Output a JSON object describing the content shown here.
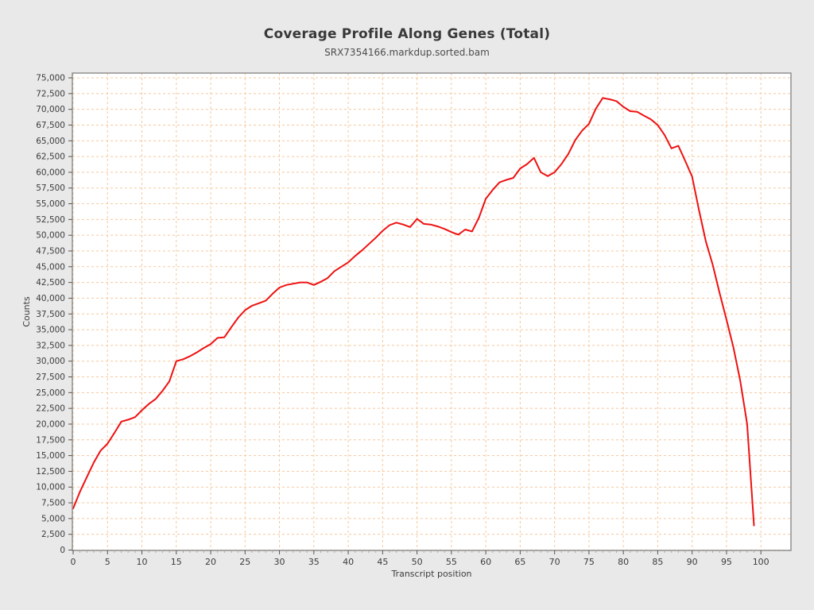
{
  "page": {
    "background": "#e9e9e9"
  },
  "chart_data": {
    "type": "line",
    "title": "Coverage Profile Along Genes (Total)",
    "subtitle": "SRX7354166.markdup.sorted.bam",
    "xlabel": "Transcript position",
    "ylabel": "Counts",
    "xlim": [
      0,
      104.5
    ],
    "ylim": [
      0,
      75000
    ],
    "grid": true,
    "legend_position": "none",
    "x_ticks": [
      0,
      5,
      10,
      15,
      20,
      25,
      30,
      35,
      40,
      45,
      50,
      55,
      60,
      65,
      70,
      75,
      80,
      85,
      90,
      95,
      100
    ],
    "x_minor_tick_step": 1,
    "y_ticks": [
      0,
      2500,
      5000,
      7500,
      10000,
      12500,
      15000,
      17500,
      20000,
      22500,
      25000,
      27500,
      30000,
      32500,
      35000,
      37500,
      40000,
      42500,
      45000,
      47500,
      50000,
      52500,
      55000,
      57500,
      60000,
      62500,
      65000,
      67500,
      70000,
      72500,
      75000
    ],
    "series": [
      {
        "name": "SRX7354166.markdup.sorted.bam",
        "color": "#ee1111",
        "x_start": 0,
        "values": [
          6600,
          9300,
          11600,
          13900,
          15800,
          16900,
          18600,
          20400,
          20700,
          21100,
          22200,
          23200,
          24000,
          25300,
          26800,
          30000,
          30300,
          30800,
          31400,
          32100,
          32700,
          33700,
          33800,
          35400,
          36900,
          38100,
          38800,
          39200,
          39600,
          40700,
          41700,
          42100,
          42300,
          42500,
          42500,
          42100,
          42600,
          43200,
          44300,
          45000,
          45700,
          46700,
          47600,
          48600,
          49600,
          50700,
          51600,
          52000,
          51700,
          51300,
          52600,
          51800,
          51700,
          51400,
          51000,
          50500,
          50100,
          50900,
          50600,
          52800,
          55800,
          57200,
          58400,
          58800,
          59100,
          60600,
          61300,
          62300,
          60000,
          59400,
          60000,
          61300,
          62900,
          65100,
          66600,
          67700,
          70100,
          71800,
          71600,
          71300,
          70400,
          69700,
          69600,
          69000,
          68400,
          67500,
          65900,
          63800,
          64200,
          61800,
          59300,
          54000,
          49000,
          45300,
          40800,
          36600,
          32200,
          26900,
          20000,
          3900
        ]
      }
    ],
    "styles": {
      "plot_bg": "#ffffff",
      "grid_color": "#f7c89d",
      "border_color": "#8f8f8f",
      "tick_color": "#555555",
      "minor_tick_color": "#aaaaaa",
      "tick_label_color": "#3c3c3c",
      "axis_label_color": "#3c3c3c",
      "title_color": "#393939",
      "subtitle_color": "#4c4c4c",
      "line_width": 2
    }
  }
}
